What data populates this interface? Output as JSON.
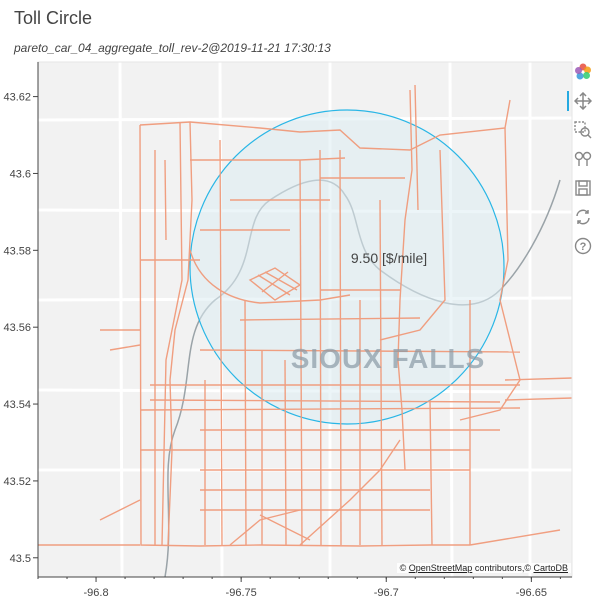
{
  "title": "Toll Circle",
  "subtitle": "pareto_car_04_aggregate_toll_rev-2@2019-11-21 17:30:13",
  "toll_label": "9.50 [$/mile]",
  "city_label": "SIOUX FALLS",
  "attribution": {
    "prefix": "©",
    "osm": "OpenStreetMap",
    "middle": "contributors,©",
    "carto": "CartoDB"
  },
  "toolbar": {
    "tools": [
      "bokeh-logo",
      "pan",
      "box-zoom",
      "wheel-zoom",
      "save",
      "reset",
      "help"
    ],
    "active": "pan"
  },
  "colors": {
    "roads": "#f09a7a",
    "circle_stroke": "#29b6e6",
    "circle_fill": "#dcecf3",
    "map_bg": "#f2f2f2",
    "river": "#9aa3a8"
  },
  "chart_data": {
    "type": "map",
    "x_ticks": [
      "-96.8",
      "-96.75",
      "-96.7",
      "-96.65"
    ],
    "y_ticks": [
      "43.5",
      "43.52",
      "43.54",
      "43.56",
      "43.58",
      "43.6",
      "43.62"
    ],
    "xlim": [
      -96.82,
      -96.636
    ],
    "ylim": [
      43.495,
      43.629
    ],
    "toll_circle": {
      "center_lon": -96.706,
      "center_lat": 43.5745,
      "radius_deg_lon": 0.0753
    },
    "toll_rate": 9.5,
    "toll_unit": "$/mile"
  }
}
